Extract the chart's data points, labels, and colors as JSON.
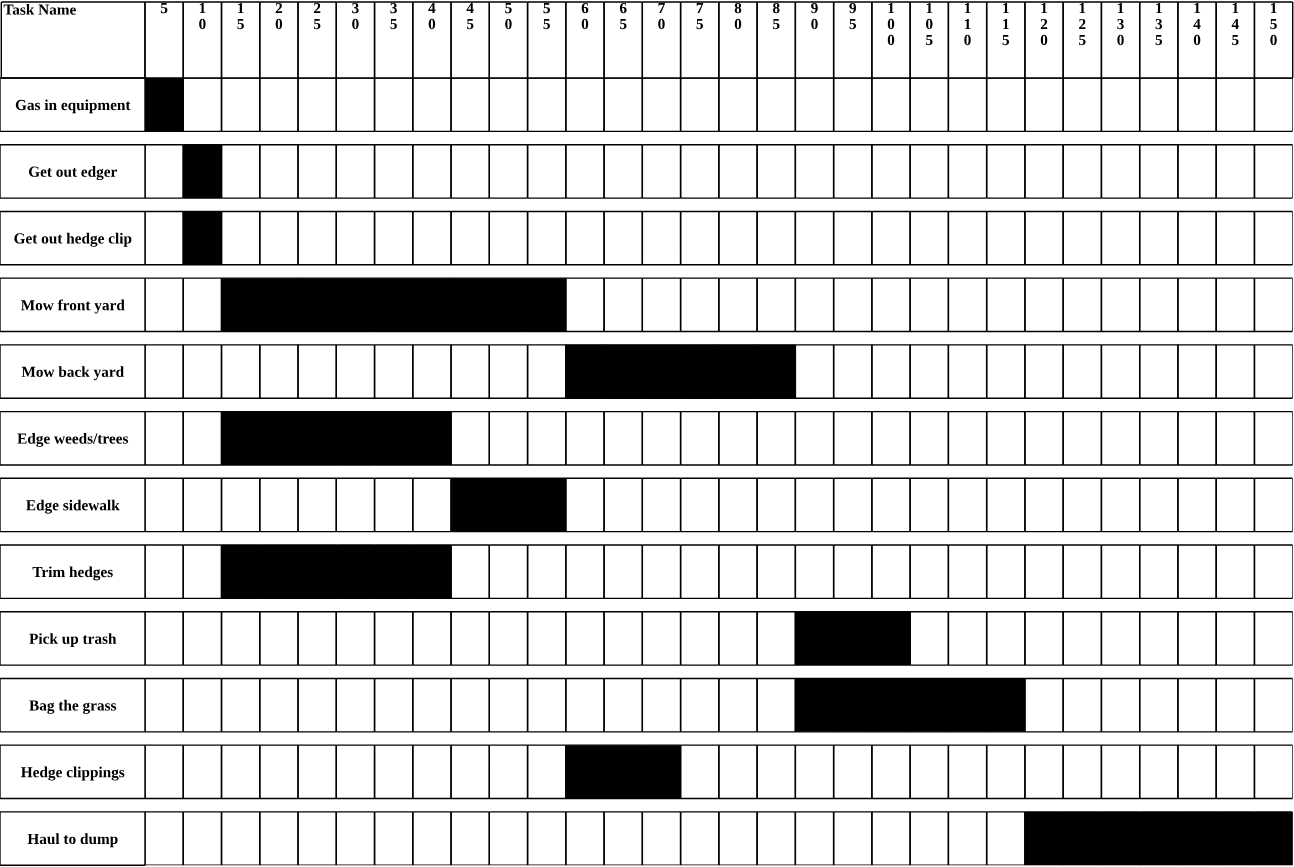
{
  "chart_data": {
    "type": "bar",
    "orientation": "horizontal",
    "ylabel": "Task Name",
    "categories": [
      "Gas in equipment",
      "Get out edger",
      "Get out hedge clip",
      "Mow front yard",
      "Mow back yard",
      "Edge weeds/trees",
      "Edge sidewalk",
      "Trim hedges",
      "Pick up trash",
      "Bag the grass",
      "Hedge clippings",
      "Haul to dump"
    ],
    "base": [
      2.5,
      7.5,
      7.5,
      12.5,
      57.5,
      12.5,
      42.5,
      12.5,
      87.5,
      87.5,
      57.5,
      117.5
    ],
    "values": [
      5,
      5,
      5,
      45,
      30,
      30,
      15,
      30,
      15,
      30,
      15,
      35
    ],
    "color": "#000000",
    "xlim": [
      2.5,
      152.5
    ],
    "xticks": [
      5,
      10,
      15,
      20,
      25,
      30,
      35,
      40,
      45,
      50,
      55,
      60,
      65,
      70,
      75,
      80,
      85,
      90,
      95,
      100,
      105,
      110,
      115,
      120,
      125,
      130,
      135,
      140,
      145,
      150
    ]
  }
}
